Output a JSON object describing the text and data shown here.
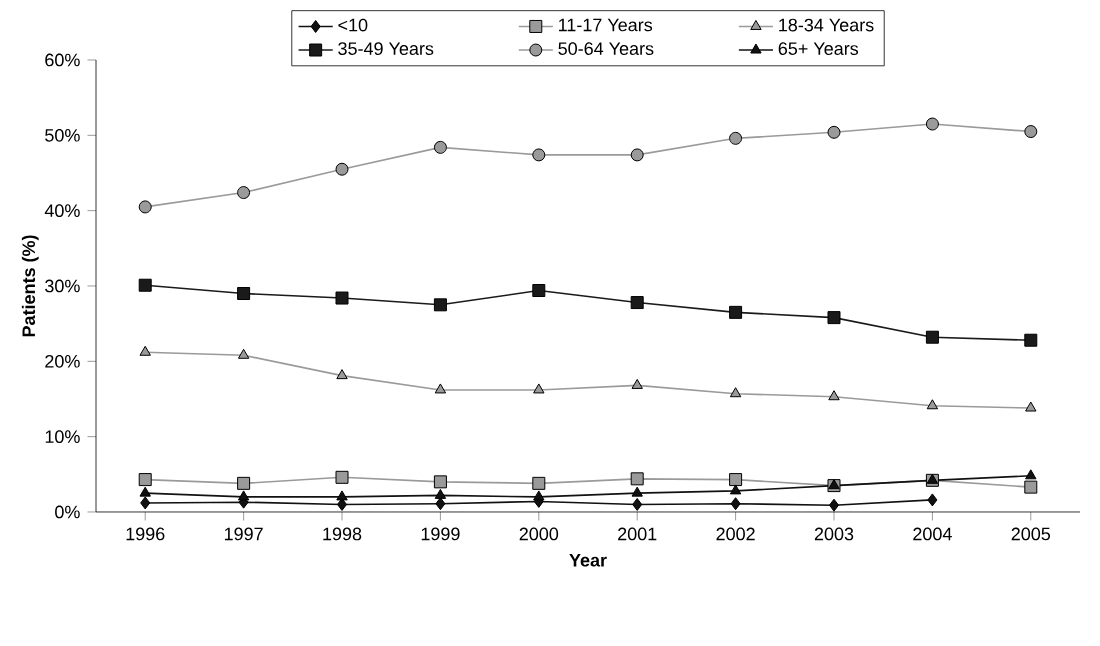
{
  "chart_data": {
    "type": "line",
    "xlabel": "Year",
    "ylabel": "Patients (%)",
    "categories": [
      "1996",
      "1997",
      "1998",
      "1999",
      "2000",
      "2001",
      "2002",
      "2003",
      "2004",
      "2005"
    ],
    "series": [
      {
        "name": "<10",
        "color": "#111111",
        "marker": "diamond",
        "values": [
          1.2,
          1.3,
          1.0,
          1.1,
          1.4,
          1.0,
          1.1,
          0.9,
          1.6,
          null
        ]
      },
      {
        "name": "11-17 Years",
        "color": "#9a9a9a",
        "marker": "square",
        "values": [
          4.3,
          3.8,
          4.6,
          4.0,
          3.8,
          4.4,
          4.3,
          3.5,
          4.2,
          3.3
        ]
      },
      {
        "name": "18-34 Years",
        "color": "#9a9a9a",
        "marker": "triangle",
        "values": [
          21.2,
          20.8,
          18.1,
          16.2,
          16.2,
          16.8,
          15.7,
          15.3,
          14.1,
          13.8
        ]
      },
      {
        "name": "35-49 Years",
        "color": "#1a1a1a",
        "marker": "square",
        "values": [
          30.1,
          29.0,
          28.4,
          27.5,
          29.4,
          27.8,
          26.5,
          25.8,
          23.2,
          22.8
        ]
      },
      {
        "name": "50-64 Years",
        "color": "#9a9a9a",
        "marker": "circle",
        "values": [
          40.5,
          42.4,
          45.5,
          48.4,
          47.4,
          47.4,
          49.6,
          50.4,
          51.5,
          50.5
        ]
      },
      {
        "name": "65+ Years",
        "color": "#111111",
        "marker": "triangle",
        "values": [
          2.5,
          2.0,
          2.0,
          2.2,
          2.0,
          2.5,
          2.8,
          3.5,
          4.2,
          4.8
        ]
      }
    ],
    "ylim": [
      0,
      60
    ],
    "yticks": [
      {
        "value": 0,
        "label": "0%"
      },
      {
        "value": 10,
        "label": "10%"
      },
      {
        "value": 20,
        "label": "20%"
      },
      {
        "value": 30,
        "label": "30%"
      },
      {
        "value": 40,
        "label": "40%"
      },
      {
        "value": 50,
        "label": "50%"
      },
      {
        "value": 60,
        "label": "60%"
      }
    ],
    "grid": false,
    "legend": "top",
    "line_style": "solid"
  }
}
